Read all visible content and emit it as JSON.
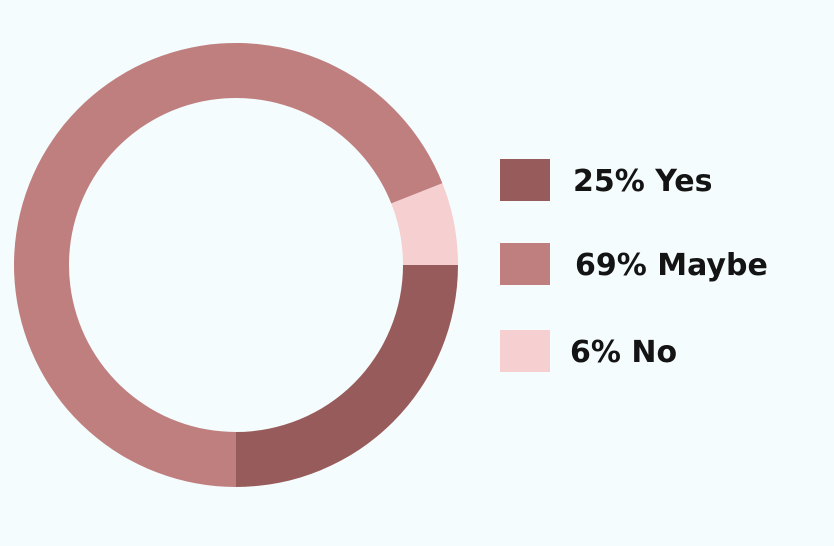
{
  "chart_data": {
    "type": "pie",
    "title": "",
    "slices": [
      {
        "label": "25% Yes",
        "value": 25,
        "color": "#985b5b"
      },
      {
        "label": "69% Maybe",
        "value": 69,
        "color": "#c07f7f"
      },
      {
        "label": "6% No",
        "value": 6,
        "color": "#f6cfd0"
      }
    ],
    "legend_position": "right"
  },
  "background_color": "#f5fcfd"
}
